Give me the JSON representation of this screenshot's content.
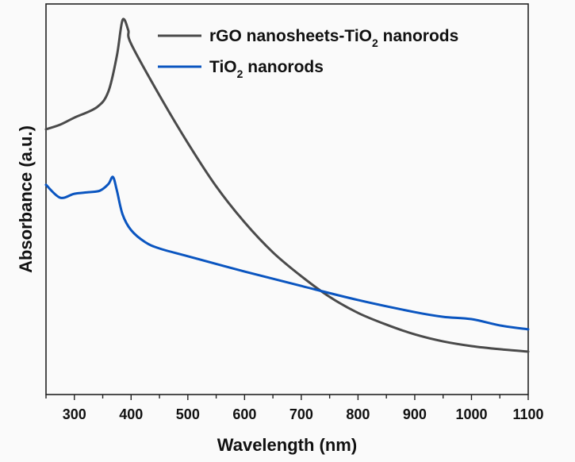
{
  "chart_data": {
    "type": "line",
    "title": "",
    "xlabel": "Wavelength (nm)",
    "ylabel": "Absorbance (a.u.)",
    "xlim": [
      250,
      1100
    ],
    "ylim": [
      0,
      1
    ],
    "xticks": [
      300,
      400,
      500,
      600,
      700,
      800,
      900,
      1000,
      1100
    ],
    "xticks_minor_step": 50,
    "yticks": [],
    "grid": false,
    "legend": "top-right",
    "series": [
      {
        "name": "rGO nanosheets-TiO2 nanorods",
        "label_main": "rGO nanosheets-TiO",
        "label_sub": "2",
        "label_tail": " nanorods",
        "color": "#4a4a4a",
        "x": [
          250,
          275,
          300,
          340,
          360,
          375,
          385,
          395,
          400,
          450,
          500,
          550,
          600,
          650,
          700,
          750,
          800,
          850,
          900,
          950,
          1000,
          1050,
          1100
        ],
        "y": [
          0.679,
          0.691,
          0.709,
          0.736,
          0.776,
          0.868,
          0.959,
          0.933,
          0.898,
          0.766,
          0.644,
          0.533,
          0.441,
          0.364,
          0.303,
          0.25,
          0.209,
          0.179,
          0.154,
          0.136,
          0.124,
          0.116,
          0.11
        ]
      },
      {
        "name": "TiO2 nanorods",
        "label_main": "TiO",
        "label_sub": "2",
        "label_tail": " nanorods",
        "color": "#0a55c0",
        "x": [
          250,
          275,
          300,
          325,
          345,
          360,
          368,
          375,
          385,
          400,
          425,
          450,
          500,
          600,
          700,
          800,
          900,
          950,
          1000,
          1050,
          1100
        ],
        "y": [
          0.537,
          0.504,
          0.514,
          0.518,
          0.522,
          0.539,
          0.557,
          0.522,
          0.461,
          0.421,
          0.39,
          0.374,
          0.354,
          0.315,
          0.278,
          0.242,
          0.211,
          0.199,
          0.193,
          0.177,
          0.167
        ]
      }
    ]
  }
}
